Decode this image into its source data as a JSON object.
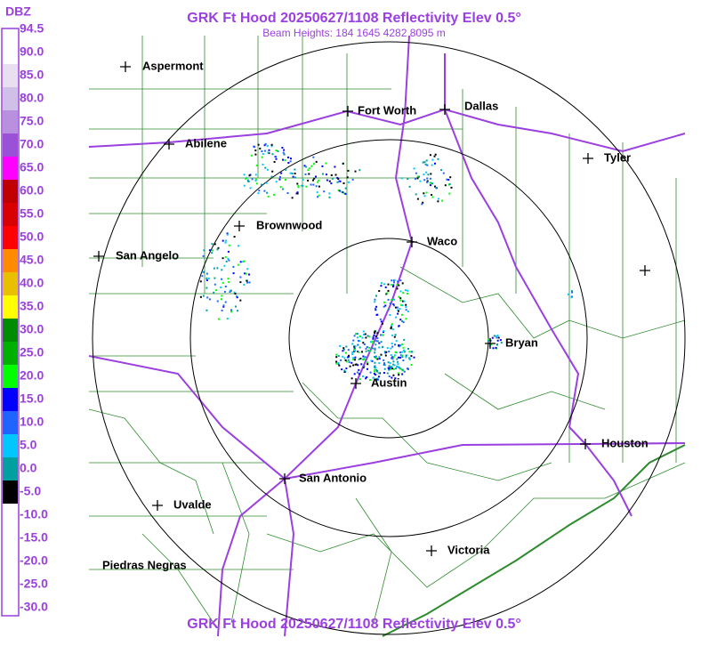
{
  "header": {
    "title": "GRK Ft Hood 20250627/1108 Reflectivity Elev 0.5°",
    "subtitle": "Beam Heights: 184 1645 4282 8095 m"
  },
  "footer": {
    "title": "GRK Ft Hood 20250627/1108 Reflectivity Elev 0.5°"
  },
  "legend": {
    "unit": "DBZ",
    "labels": [
      "94.5",
      "90.0",
      "85.0",
      "80.0",
      "75.0",
      "70.0",
      "65.0",
      "60.0",
      "55.0",
      "50.0",
      "45.0",
      "40.0",
      "35.0",
      "30.0",
      "25.0",
      "20.0",
      "15.0",
      "10.0",
      "5.0",
      "0.0",
      "-5.0",
      "-10.0",
      "-15.0",
      "-20.0",
      "-25.0",
      "-30.0"
    ]
  },
  "cities": [
    {
      "label": "Aspermont"
    },
    {
      "label": "Fort Worth"
    },
    {
      "label": "Dallas"
    },
    {
      "label": "Abilene"
    },
    {
      "label": "Tyler"
    },
    {
      "label": "Brownwood"
    },
    {
      "label": "Waco"
    },
    {
      "label": "San Angelo"
    },
    {
      "label": "Bryan"
    },
    {
      "label": "Austin"
    },
    {
      "label": "Houston"
    },
    {
      "label": "San Antonio"
    },
    {
      "label": "Uvalde"
    },
    {
      "label": "Victoria"
    },
    {
      "label": "Piedras Negras"
    }
  ]
}
